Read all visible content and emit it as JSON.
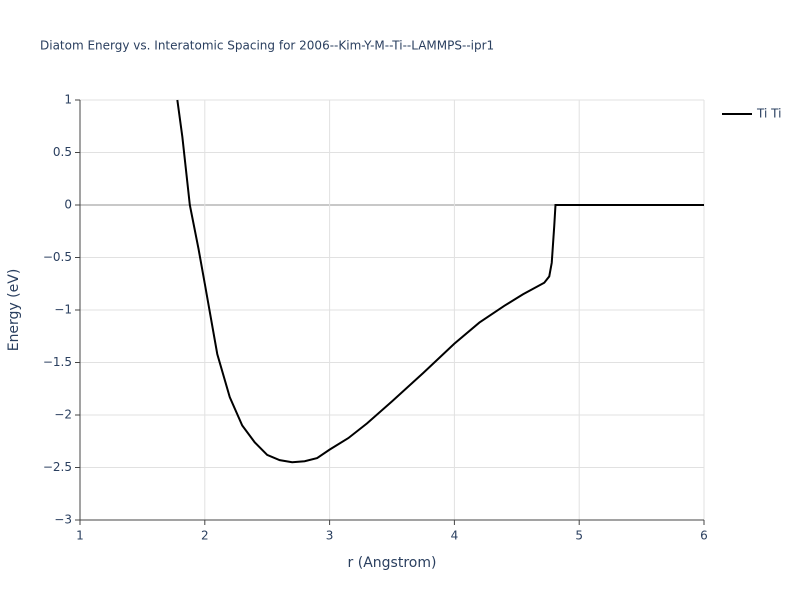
{
  "chart_data": {
    "type": "line",
    "title": "Diatom Energy vs. Interatomic Spacing for 2006--Kim-Y-M--Ti--LAMMPS--ipr1",
    "x_label": "r (Angstrom)",
    "y_label": "Energy (eV)",
    "x": [
      1.78,
      1.82,
      1.88,
      1.95,
      2.0,
      2.1,
      2.2,
      2.3,
      2.4,
      2.5,
      2.6,
      2.7,
      2.8,
      2.9,
      3.0,
      3.15,
      3.3,
      3.5,
      3.75,
      4.0,
      4.2,
      4.4,
      4.55,
      4.72,
      4.76,
      4.78,
      4.8,
      4.81,
      6.0
    ],
    "series": [
      {
        "name": "Ti Ti",
        "color": "#000000",
        "values": [
          1.0,
          0.65,
          0.0,
          -0.42,
          -0.75,
          -1.42,
          -1.83,
          -2.1,
          -2.26,
          -2.38,
          -2.43,
          -2.45,
          -2.44,
          -2.41,
          -2.33,
          -2.22,
          -2.08,
          -1.87,
          -1.6,
          -1.32,
          -1.12,
          -0.96,
          -0.85,
          -0.74,
          -0.68,
          -0.55,
          -0.2,
          0.0,
          0.0
        ]
      }
    ],
    "xlim": [
      1,
      6
    ],
    "ylim": [
      -3,
      1
    ],
    "xticks": [
      1,
      2,
      3,
      4,
      5,
      6
    ],
    "yticks": [
      {
        "value": -3,
        "label": "−3"
      },
      {
        "value": -2.5,
        "label": "−2.5"
      },
      {
        "value": -2,
        "label": "−2"
      },
      {
        "value": -1.5,
        "label": "−1.5"
      },
      {
        "value": -1,
        "label": "−1"
      },
      {
        "value": -0.5,
        "label": "−0.5"
      },
      0,
      0.5,
      1
    ],
    "grid": true,
    "legend": "right"
  }
}
